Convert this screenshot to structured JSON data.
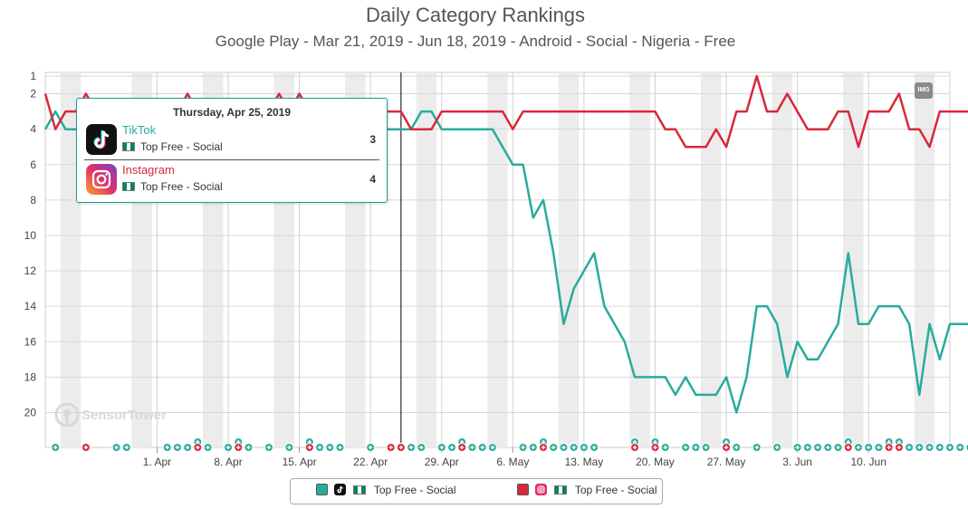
{
  "page": {
    "title": "Daily Category Rankings",
    "subtitle": "Google Play - Mar 21, 2019 - Jun 18, 2019 - Android - Social - Nigeria - Free"
  },
  "tooltip": {
    "date": "Thursday, Apr 25, 2019",
    "rows": [
      {
        "app": "TikTok",
        "category": "Top Free - Social",
        "rank": "3",
        "color": "#2aab9c",
        "icon": "tiktok-icon"
      },
      {
        "app": "Instagram",
        "category": "Top Free - Social",
        "rank": "4",
        "color": "#d9283a",
        "icon": "instagram-icon"
      }
    ]
  },
  "legend": {
    "items": [
      {
        "label": "Top Free - Social",
        "color": "#2aab9c",
        "icon": "tiktok-icon"
      },
      {
        "label": "Top Free - Social",
        "color": "#d9283a",
        "icon": "instagram-icon"
      }
    ]
  },
  "img_badge": "IMG",
  "watermark": "SensorTower",
  "chart_data": {
    "type": "line",
    "title": "Daily Category Rankings",
    "subtitle": "Google Play - Mar 21, 2019 - Jun 18, 2019 - Android - Social - Nigeria - Free",
    "x_start": "2019-03-21",
    "x_end": "2019-06-18",
    "x_tick_labels": [
      "1. Apr",
      "8. Apr",
      "15. Apr",
      "22. Apr",
      "29. Apr",
      "6. May",
      "13. May",
      "20. May",
      "27. May",
      "3. Jun",
      "10. Jun"
    ],
    "y_tick_labels": [
      1,
      2,
      4,
      6,
      8,
      10,
      12,
      14,
      16,
      18,
      20
    ],
    "ylim": [
      1,
      21
    ],
    "y_reversed": true,
    "grid": true,
    "legend_position": "bottom",
    "weekend_bands": true,
    "series": [
      {
        "name": "TikTok",
        "color": "#2aab9c",
        "values": [
          4,
          3,
          4,
          4,
          4,
          4,
          4,
          4,
          4,
          4,
          4,
          4,
          4,
          4,
          4,
          4,
          4,
          4,
          4,
          4,
          4,
          4,
          4,
          4,
          4,
          4,
          4,
          4,
          4,
          4,
          4,
          4,
          4,
          4,
          4,
          4,
          4,
          3,
          3,
          4,
          4,
          4,
          4,
          4,
          4,
          5,
          6,
          6,
          9,
          8,
          11,
          15,
          13,
          12,
          11,
          14,
          15,
          16,
          18,
          18,
          18,
          18,
          19,
          18,
          19,
          19,
          19,
          18,
          20,
          18,
          14,
          14,
          15,
          18,
          16,
          17,
          17,
          16,
          15,
          11,
          15,
          15,
          14,
          14,
          14,
          15,
          19,
          15,
          17,
          15,
          15,
          15,
          16
        ]
      },
      {
        "name": "Instagram",
        "color": "#d9283a",
        "values": [
          2,
          4,
          3,
          3,
          2,
          3,
          3,
          3,
          3,
          3,
          3,
          3,
          3,
          3,
          2,
          3,
          3,
          3,
          3,
          3,
          3,
          3,
          3,
          2,
          3,
          2,
          3,
          3,
          3,
          3,
          3,
          3,
          3,
          3,
          3,
          3,
          4,
          4,
          4,
          3,
          3,
          3,
          3,
          3,
          3,
          3,
          4,
          3,
          3,
          3,
          3,
          3,
          3,
          3,
          3,
          3,
          3,
          3,
          3,
          3,
          3,
          4,
          4,
          5,
          5,
          5,
          4,
          5,
          3,
          3,
          1,
          3,
          3,
          2,
          3,
          4,
          4,
          4,
          3,
          3,
          5,
          3,
          3,
          3,
          2,
          4,
          4,
          5,
          3,
          3,
          3,
          3,
          3
        ]
      }
    ],
    "update_markers": {
      "tiktok_days": [
        1,
        7,
        8,
        12,
        13,
        14,
        15,
        16,
        18,
        19,
        20,
        22,
        24,
        26,
        27,
        28,
        29,
        32,
        36,
        37,
        39,
        40,
        41,
        42,
        43,
        44,
        47,
        48,
        49,
        50,
        51,
        52,
        53,
        54,
        58,
        60,
        61,
        63,
        64,
        65,
        67,
        68,
        70,
        72,
        74,
        75,
        76,
        77,
        78,
        79,
        80,
        81,
        82,
        83,
        84,
        85,
        86,
        87,
        88,
        89,
        90,
        91
      ],
      "instagram_days": [
        4,
        15,
        19,
        26,
        34,
        35,
        41,
        49,
        58,
        60,
        67,
        79,
        83,
        84
      ]
    }
  }
}
